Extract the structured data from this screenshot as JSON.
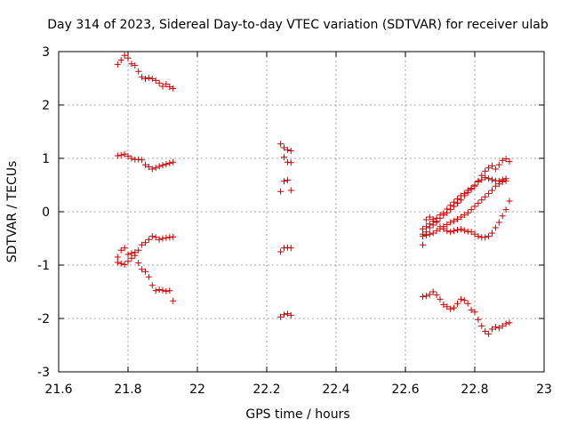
{
  "chart_data": {
    "type": "scatter",
    "title": "Day 314 of 2023, Sidereal Day-to-day VTEC variation (SDTVAR) for receiver ulab",
    "xlabel": "GPS time / hours",
    "ylabel": "SDTVAR / TECUs",
    "xlim": [
      21.6,
      23.0
    ],
    "ylim": [
      -3,
      3
    ],
    "xticks": [
      "21.6",
      "21.8",
      "22",
      "22.2",
      "22.4",
      "22.6",
      "22.8",
      "23"
    ],
    "yticks": [
      "-3",
      "-2",
      "-1",
      "0",
      "1",
      "2",
      "3"
    ],
    "grid": true,
    "marker": "+",
    "color": "#cc0000",
    "series": [
      {
        "name": "SDTVAR",
        "points": [
          [
            21.77,
            2.76
          ],
          [
            21.78,
            2.84
          ],
          [
            21.79,
            2.93
          ],
          [
            21.8,
            2.88
          ],
          [
            21.81,
            2.77
          ],
          [
            21.82,
            2.74
          ],
          [
            21.83,
            2.63
          ],
          [
            21.84,
            2.52
          ],
          [
            21.85,
            2.49
          ],
          [
            21.86,
            2.51
          ],
          [
            21.87,
            2.49
          ],
          [
            21.88,
            2.46
          ],
          [
            21.89,
            2.41
          ],
          [
            21.9,
            2.35
          ],
          [
            21.91,
            2.39
          ],
          [
            21.92,
            2.34
          ],
          [
            21.93,
            2.31
          ],
          [
            21.77,
            1.05
          ],
          [
            21.78,
            1.06
          ],
          [
            21.79,
            1.08
          ],
          [
            21.8,
            1.04
          ],
          [
            21.81,
            1.0
          ],
          [
            21.82,
            0.98
          ],
          [
            21.83,
            0.98
          ],
          [
            21.84,
            0.97
          ],
          [
            21.85,
            0.88
          ],
          [
            21.86,
            0.84
          ],
          [
            21.87,
            0.8
          ],
          [
            21.88,
            0.82
          ],
          [
            21.89,
            0.85
          ],
          [
            21.9,
            0.87
          ],
          [
            21.91,
            0.89
          ],
          [
            21.92,
            0.91
          ],
          [
            21.93,
            0.93
          ],
          [
            21.77,
            -0.85
          ],
          [
            21.78,
            -0.72
          ],
          [
            21.79,
            -0.68
          ],
          [
            21.8,
            -0.8
          ],
          [
            21.81,
            -0.78
          ],
          [
            21.82,
            -0.76
          ],
          [
            21.83,
            -0.72
          ],
          [
            21.84,
            -0.62
          ],
          [
            21.85,
            -0.58
          ],
          [
            21.86,
            -0.52
          ],
          [
            21.87,
            -0.46
          ],
          [
            21.88,
            -0.48
          ],
          [
            21.89,
            -0.52
          ],
          [
            21.9,
            -0.5
          ],
          [
            21.91,
            -0.49
          ],
          [
            21.92,
            -0.48
          ],
          [
            21.93,
            -0.47
          ],
          [
            21.77,
            -0.95
          ],
          [
            21.78,
            -0.97
          ],
          [
            21.79,
            -0.99
          ],
          [
            21.8,
            -0.93
          ],
          [
            21.81,
            -0.87
          ],
          [
            21.82,
            -0.82
          ],
          [
            21.83,
            -0.96
          ],
          [
            21.84,
            -1.08
          ],
          [
            21.85,
            -1.12
          ],
          [
            21.86,
            -1.22
          ],
          [
            21.87,
            -1.38
          ],
          [
            21.88,
            -1.48
          ],
          [
            21.89,
            -1.46
          ],
          [
            21.9,
            -1.47
          ],
          [
            21.91,
            -1.49
          ],
          [
            21.92,
            -1.48
          ],
          [
            21.93,
            -1.67
          ],
          [
            22.24,
            1.27
          ],
          [
            22.25,
            1.2
          ],
          [
            22.26,
            1.16
          ],
          [
            22.27,
            1.14
          ],
          [
            22.25,
            1.02
          ],
          [
            22.26,
            0.93
          ],
          [
            22.27,
            0.92
          ],
          [
            22.25,
            0.57
          ],
          [
            22.26,
            0.59
          ],
          [
            22.24,
            0.38
          ],
          [
            22.27,
            0.4
          ],
          [
            22.24,
            -0.75
          ],
          [
            22.25,
            -0.68
          ],
          [
            22.26,
            -0.67
          ],
          [
            22.27,
            -0.68
          ],
          [
            22.24,
            -1.97
          ],
          [
            22.25,
            -1.93
          ],
          [
            22.26,
            -1.91
          ],
          [
            22.27,
            -1.94
          ],
          [
            22.65,
            -0.62
          ],
          [
            22.65,
            -0.32
          ],
          [
            22.66,
            -0.28
          ],
          [
            22.67,
            -0.23
          ],
          [
            22.68,
            -0.18
          ],
          [
            22.69,
            -0.12
          ],
          [
            22.7,
            -0.06
          ],
          [
            22.71,
            -0.03
          ],
          [
            22.72,
            0.05
          ],
          [
            22.73,
            0.12
          ],
          [
            22.74,
            0.18
          ],
          [
            22.75,
            0.24
          ],
          [
            22.76,
            0.3
          ],
          [
            22.77,
            0.34
          ],
          [
            22.78,
            0.4
          ],
          [
            22.79,
            0.44
          ],
          [
            22.8,
            0.5
          ],
          [
            22.81,
            0.56
          ],
          [
            22.82,
            0.6
          ],
          [
            22.83,
            0.64
          ],
          [
            22.84,
            0.62
          ],
          [
            22.85,
            0.6
          ],
          [
            22.86,
            0.58
          ],
          [
            22.87,
            0.58
          ],
          [
            22.88,
            0.6
          ],
          [
            22.89,
            0.62
          ],
          [
            22.65,
            -0.42
          ],
          [
            22.66,
            -0.38
          ],
          [
            22.67,
            -0.3
          ],
          [
            22.68,
            -0.25
          ],
          [
            22.69,
            -0.18
          ],
          [
            22.7,
            -0.12
          ],
          [
            22.71,
            -0.06
          ],
          [
            22.72,
            -0.02
          ],
          [
            22.73,
            0.04
          ],
          [
            22.74,
            0.1
          ],
          [
            22.75,
            0.16
          ],
          [
            22.76,
            0.22
          ],
          [
            22.77,
            0.3
          ],
          [
            22.78,
            0.36
          ],
          [
            22.79,
            0.42
          ],
          [
            22.8,
            0.48
          ],
          [
            22.81,
            0.58
          ],
          [
            22.82,
            0.68
          ],
          [
            22.83,
            0.76
          ],
          [
            22.84,
            0.82
          ],
          [
            22.85,
            0.86
          ],
          [
            22.86,
            0.8
          ],
          [
            22.87,
            0.88
          ],
          [
            22.88,
            0.96
          ],
          [
            22.89,
            0.99
          ],
          [
            22.9,
            0.94
          ],
          [
            22.65,
            -0.46
          ],
          [
            22.66,
            -0.44
          ],
          [
            22.67,
            -0.42
          ],
          [
            22.68,
            -0.4
          ],
          [
            22.69,
            -0.36
          ],
          [
            22.7,
            -0.32
          ],
          [
            22.71,
            -0.28
          ],
          [
            22.72,
            -0.24
          ],
          [
            22.73,
            -0.2
          ],
          [
            22.74,
            -0.17
          ],
          [
            22.75,
            -0.14
          ],
          [
            22.76,
            -0.1
          ],
          [
            22.77,
            -0.06
          ],
          [
            22.78,
            -0.02
          ],
          [
            22.79,
            0.04
          ],
          [
            22.8,
            0.1
          ],
          [
            22.81,
            0.16
          ],
          [
            22.82,
            0.22
          ],
          [
            22.83,
            0.28
          ],
          [
            22.84,
            0.34
          ],
          [
            22.85,
            0.4
          ],
          [
            22.86,
            0.48
          ],
          [
            22.87,
            0.52
          ],
          [
            22.88,
            0.56
          ],
          [
            22.89,
            0.58
          ],
          [
            22.66,
            -0.15
          ],
          [
            22.67,
            -0.1
          ],
          [
            22.68,
            -0.14
          ],
          [
            22.69,
            -0.2
          ],
          [
            22.7,
            -0.28
          ],
          [
            22.71,
            -0.32
          ],
          [
            22.72,
            -0.36
          ],
          [
            22.73,
            -0.38
          ],
          [
            22.74,
            -0.36
          ],
          [
            22.75,
            -0.34
          ],
          [
            22.76,
            -0.33
          ],
          [
            22.77,
            -0.35
          ],
          [
            22.78,
            -0.37
          ],
          [
            22.79,
            -0.38
          ],
          [
            22.8,
            -0.42
          ],
          [
            22.81,
            -0.46
          ],
          [
            22.82,
            -0.48
          ],
          [
            22.83,
            -0.48
          ],
          [
            22.84,
            -0.46
          ],
          [
            22.85,
            -0.4
          ],
          [
            22.86,
            -0.3
          ],
          [
            22.87,
            -0.2
          ],
          [
            22.88,
            -0.08
          ],
          [
            22.89,
            0.04
          ],
          [
            22.9,
            0.2
          ],
          [
            22.65,
            -1.59
          ],
          [
            22.66,
            -1.58
          ],
          [
            22.67,
            -1.55
          ],
          [
            22.68,
            -1.5
          ],
          [
            22.69,
            -1.56
          ],
          [
            22.7,
            -1.64
          ],
          [
            22.71,
            -1.74
          ],
          [
            22.72,
            -1.78
          ],
          [
            22.73,
            -1.82
          ],
          [
            22.74,
            -1.8
          ],
          [
            22.75,
            -1.72
          ],
          [
            22.76,
            -1.64
          ],
          [
            22.77,
            -1.66
          ],
          [
            22.78,
            -1.72
          ],
          [
            22.79,
            -1.84
          ],
          [
            22.8,
            -1.88
          ],
          [
            22.81,
            -2.02
          ],
          [
            22.82,
            -2.14
          ],
          [
            22.83,
            -2.24
          ],
          [
            22.84,
            -2.29
          ],
          [
            22.85,
            -2.2
          ],
          [
            22.86,
            -2.16
          ],
          [
            22.87,
            -2.18
          ],
          [
            22.88,
            -2.14
          ],
          [
            22.89,
            -2.1
          ],
          [
            22.9,
            -2.08
          ]
        ]
      }
    ]
  }
}
